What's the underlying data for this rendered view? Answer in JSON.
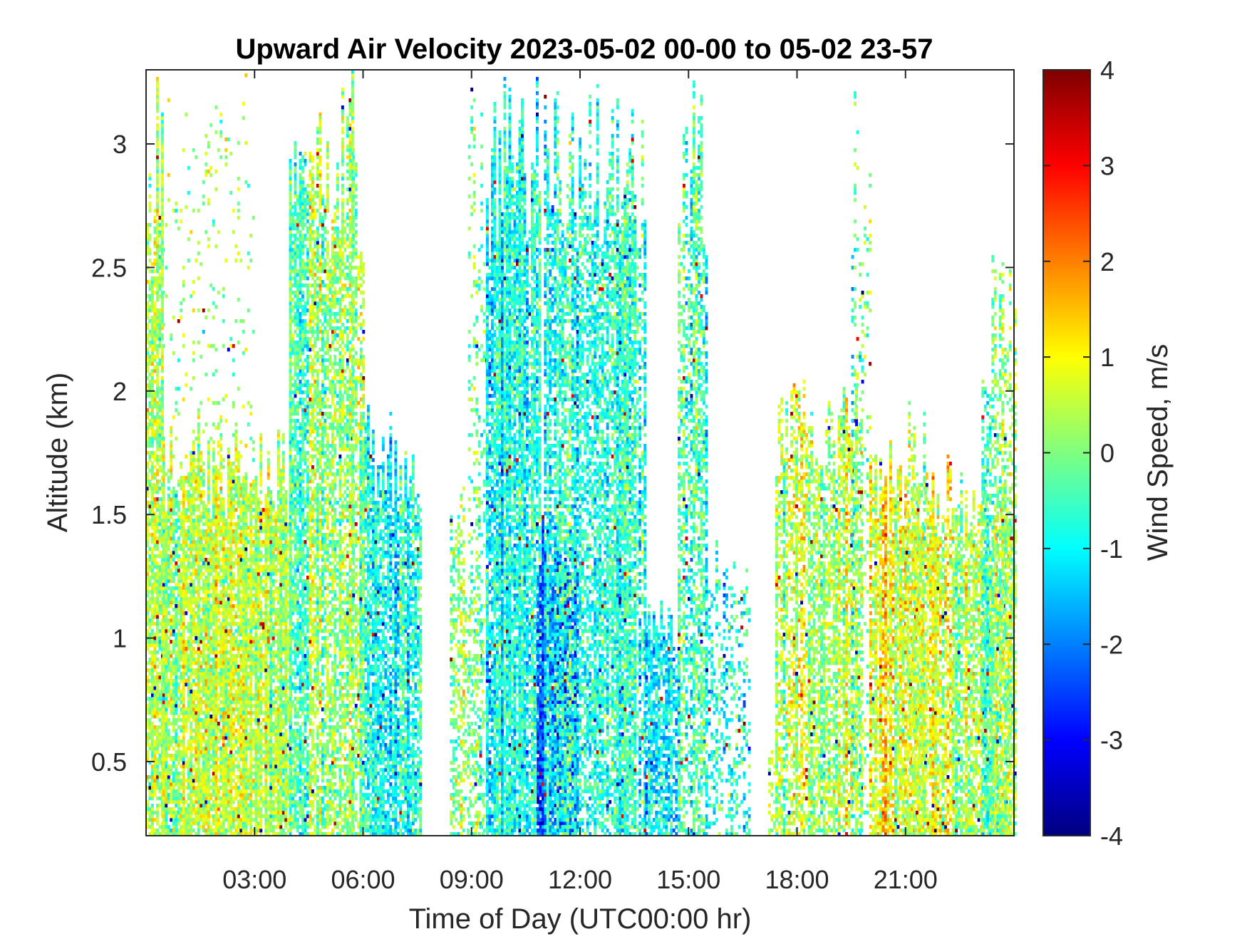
{
  "chart_data": {
    "type": "heatmap",
    "title": "Upward Air Velocity 2023-05-02 00-00 to 05-02 23-57",
    "xlabel": "Time of Day (UTC00:00 hr)",
    "ylabel": "Altitude (km)",
    "xlim": [
      0,
      24
    ],
    "ylim": [
      0.2,
      3.3
    ],
    "x_ticks": [
      {
        "value": 3,
        "label": "03:00"
      },
      {
        "value": 6,
        "label": "06:00"
      },
      {
        "value": 9,
        "label": "09:00"
      },
      {
        "value": 12,
        "label": "12:00"
      },
      {
        "value": 15,
        "label": "15:00"
      },
      {
        "value": 18,
        "label": "18:00"
      },
      {
        "value": 21,
        "label": "21:00"
      }
    ],
    "y_ticks": [
      {
        "value": 0.5,
        "label": "0.5"
      },
      {
        "value": 1,
        "label": "1"
      },
      {
        "value": 1.5,
        "label": "1.5"
      },
      {
        "value": 2,
        "label": "2"
      },
      {
        "value": 2.5,
        "label": "2.5"
      },
      {
        "value": 3,
        "label": "3"
      }
    ],
    "colorbar": {
      "label": "Wind Speed, m/s",
      "range": [
        -4,
        4
      ],
      "colormap": "jet",
      "ticks": [
        {
          "value": 4,
          "label": "4"
        },
        {
          "value": 3,
          "label": "3"
        },
        {
          "value": 2,
          "label": "2"
        },
        {
          "value": 1,
          "label": "1"
        },
        {
          "value": 0,
          "label": "0"
        },
        {
          "value": -1,
          "label": "-1"
        },
        {
          "value": -2,
          "label": "-2"
        },
        {
          "value": -3,
          "label": "-3"
        },
        {
          "value": -4,
          "label": "-4"
        }
      ]
    },
    "grid": false,
    "regions": [
      {
        "t0": 0.0,
        "t1": 0.45,
        "z_top": 3.3,
        "mean": 0.2,
        "density": 0.8
      },
      {
        "t0": 0.45,
        "t1": 4.0,
        "z_top": 1.9,
        "mean": 0.5,
        "density": 0.88
      },
      {
        "t0": 0.45,
        "t1": 3.0,
        "z_top": 3.3,
        "mean": 0.3,
        "density": 0.07
      },
      {
        "t0": 3.95,
        "t1": 4.5,
        "z_top": 3.3,
        "mean": -0.4,
        "density": 0.85
      },
      {
        "t0": 4.5,
        "t1": 5.7,
        "z_top": 3.3,
        "mean": 0.2,
        "density": 0.72
      },
      {
        "t0": 5.7,
        "t1": 6.0,
        "z_top": 3.3,
        "mean": 0.6,
        "density": 0.55
      },
      {
        "t0": 5.9,
        "t1": 7.6,
        "z_top": 1.95,
        "mean": -0.8,
        "density": 0.8
      },
      {
        "t0": 8.4,
        "t1": 8.8,
        "z_top": 1.7,
        "mean": 0.3,
        "density": 0.55
      },
      {
        "t0": 8.8,
        "t1": 9.3,
        "z_top": 1.3,
        "mean": 0.0,
        "density": 0.3
      },
      {
        "t0": 8.9,
        "t1": 9.4,
        "z_top": 3.3,
        "mean": -0.2,
        "density": 0.2
      },
      {
        "t0": 9.4,
        "t1": 10.9,
        "z_top": 3.3,
        "mean": -0.8,
        "density": 0.82
      },
      {
        "t0": 10.8,
        "t1": 11.9,
        "z_top": 1.5,
        "mean": -2.2,
        "density": 0.9
      },
      {
        "t0": 11.0,
        "t1": 13.5,
        "z_top": 3.3,
        "mean": -0.7,
        "density": 0.65
      },
      {
        "t0": 13.0,
        "t1": 13.8,
        "z_top": 3.3,
        "mean": -0.6,
        "density": 0.55
      },
      {
        "t0": 13.8,
        "t1": 14.7,
        "z_top": 1.2,
        "mean": -1.4,
        "density": 0.8
      },
      {
        "t0": 14.7,
        "t1": 15.5,
        "z_top": 3.3,
        "mean": -0.5,
        "density": 0.6
      },
      {
        "t0": 15.4,
        "t1": 16.7,
        "z_top": 1.4,
        "mean": -0.7,
        "density": 0.32
      },
      {
        "t0": 17.2,
        "t1": 17.5,
        "z_top": 0.55,
        "mean": 0.3,
        "density": 0.45
      },
      {
        "t0": 17.4,
        "t1": 19.8,
        "z_top": 2.1,
        "mean": 0.3,
        "density": 0.68
      },
      {
        "t0": 19.5,
        "t1": 20.0,
        "z_top": 3.3,
        "mean": -0.4,
        "density": 0.22
      },
      {
        "t0": 20.0,
        "t1": 22.3,
        "z_top": 1.8,
        "mean": 0.8,
        "density": 0.8
      },
      {
        "t0": 21.0,
        "t1": 21.6,
        "z_top": 2.0,
        "mean": 0.3,
        "density": 0.42
      },
      {
        "t0": 22.3,
        "t1": 24.0,
        "z_top": 1.7,
        "mean": 0.3,
        "density": 0.7
      },
      {
        "t0": 23.1,
        "t1": 24.0,
        "z_top": 2.55,
        "mean": -0.2,
        "density": 0.5
      }
    ]
  }
}
